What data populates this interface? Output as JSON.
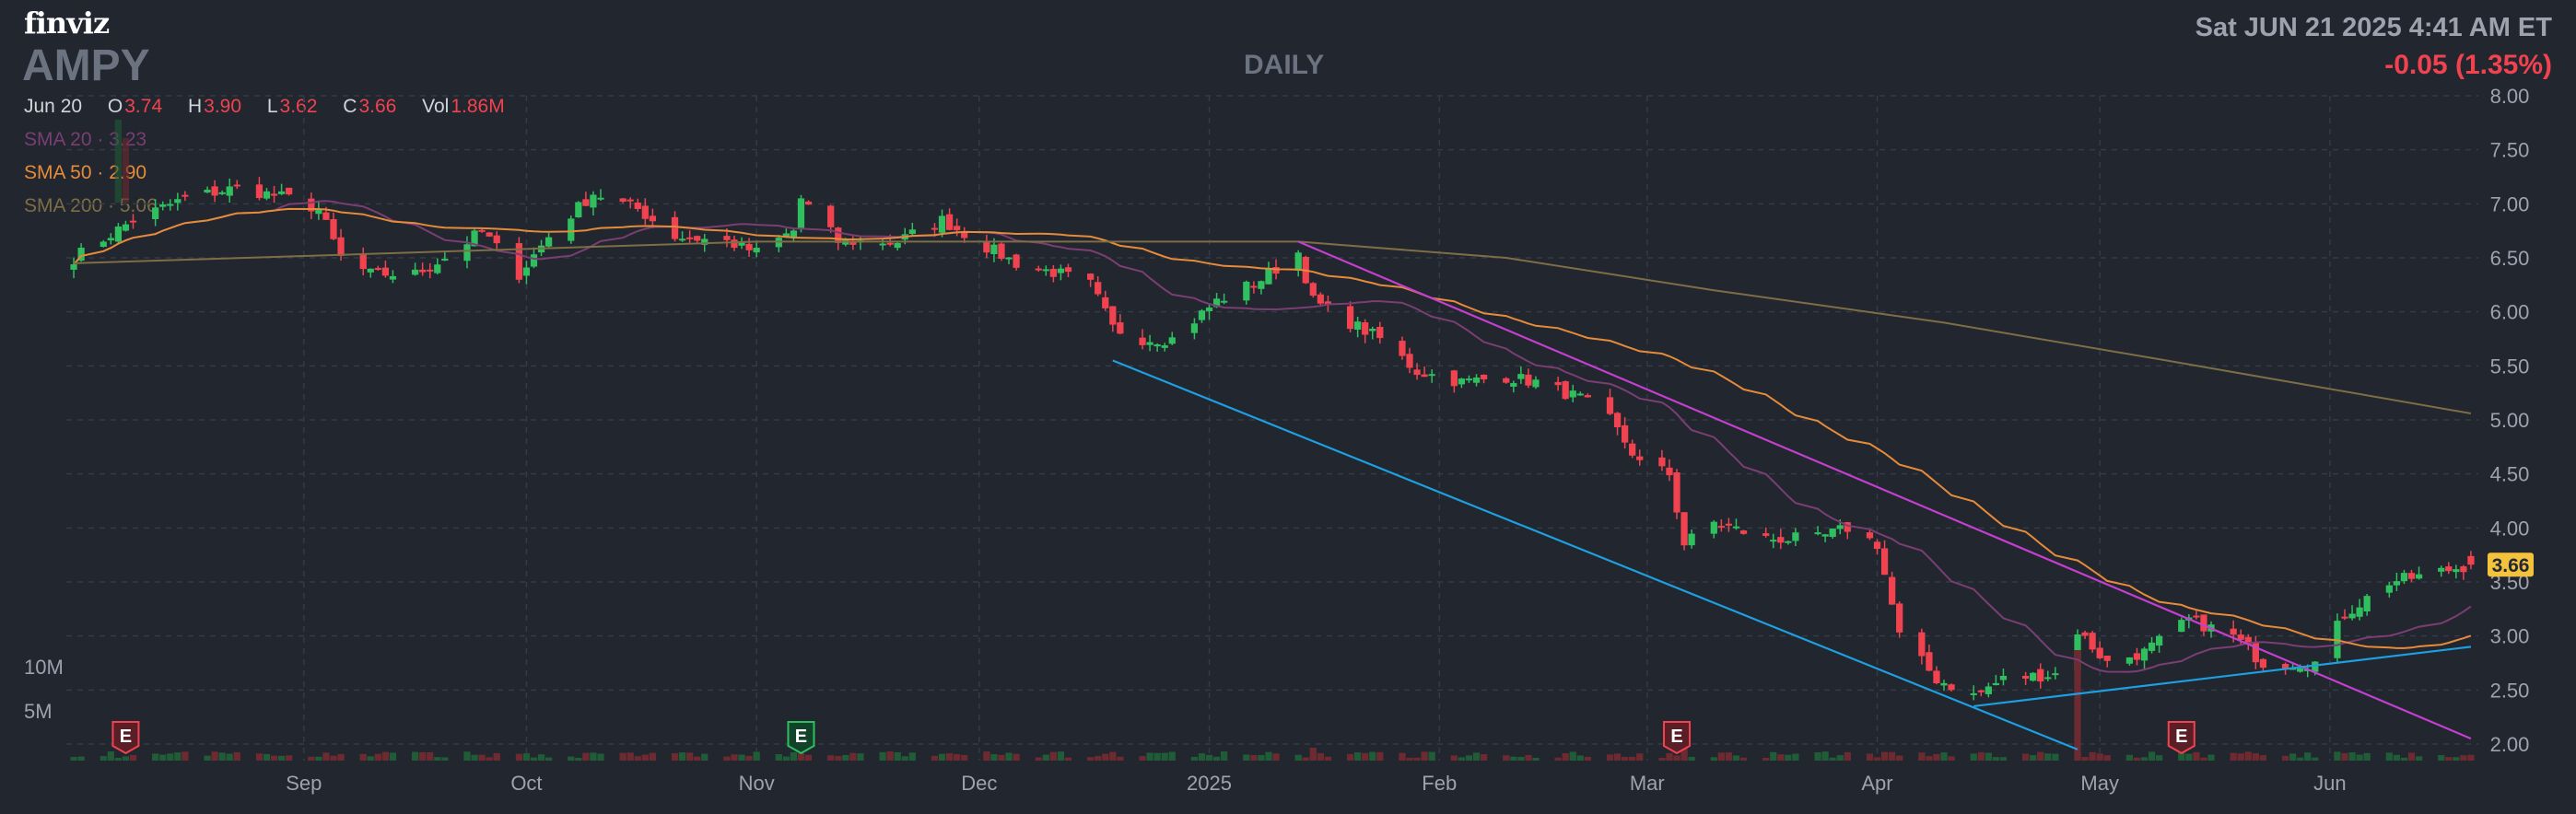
{
  "header": {
    "brand": "finviz",
    "ticker": "AMPY",
    "timeframe": "DAILY",
    "datetime": "Sat JUN 21 2025 4:41 AM ET",
    "change": "-0.05 (1.35%)",
    "ohlc": {
      "date": "Jun 20",
      "open_label": "O",
      "open": "3.74",
      "high_label": "H",
      "high": "3.90",
      "low_label": "L",
      "low": "3.62",
      "close_label": "C",
      "close": "3.66",
      "vol_label": "Vol",
      "vol": "1.86M"
    }
  },
  "legend": [
    {
      "label": "SMA 20 · 3.23",
      "color": "#7a3e73"
    },
    {
      "label": "SMA 50 · 2.90",
      "color": "#e58b3a"
    },
    {
      "label": "SMA 200 · 5.06",
      "color": "#7d6e45"
    }
  ],
  "colors": {
    "up": "#2fbf5f",
    "down": "#f0434f",
    "grid": "#343a46",
    "background": "#22262f",
    "trend_magenta": "#c43fcf",
    "trend_cyan": "#1e9fe0",
    "price_tag": "#f5c23c"
  },
  "chart_data": {
    "type": "candlestick",
    "yticks": [
      "8.00",
      "7.50",
      "7.00",
      "6.50",
      "6.00",
      "5.50",
      "5.00",
      "4.50",
      "4.00",
      "3.50",
      "3.00",
      "2.50",
      "2.00"
    ],
    "ylim": [
      2.0,
      8.0
    ],
    "xticks": [
      "Sep",
      "Oct",
      "Nov",
      "Dec",
      "2025",
      "Feb",
      "Mar",
      "Apr",
      "May",
      "Jun"
    ],
    "volume_ticks": [
      "10M",
      "5M"
    ],
    "last_price": "3.66",
    "earnings_markers": [
      {
        "date": "2024-08-08",
        "label": "E",
        "result": "miss"
      },
      {
        "date": "2024-11-07",
        "label": "E",
        "result": "beat"
      },
      {
        "date": "2025-03-05",
        "label": "E",
        "result": "miss"
      },
      {
        "date": "2025-05-12",
        "label": "E",
        "result": "miss"
      }
    ],
    "anchors": [
      [
        "2024-08-01",
        6.5
      ],
      [
        "2024-08-09",
        6.85
      ],
      [
        "2024-08-16",
        7.05
      ],
      [
        "2024-08-23",
        7.15
      ],
      [
        "2024-08-30",
        7.05
      ],
      [
        "2024-09-03",
        6.95
      ],
      [
        "2024-09-06",
        6.5
      ],
      [
        "2024-09-10",
        6.35
      ],
      [
        "2024-09-16",
        6.35
      ],
      [
        "2024-09-20",
        6.5
      ],
      [
        "2024-09-25",
        6.75
      ],
      [
        "2024-09-30",
        6.35
      ],
      [
        "2024-10-04",
        6.7
      ],
      [
        "2024-10-10",
        7.1
      ],
      [
        "2024-10-16",
        6.95
      ],
      [
        "2024-10-21",
        6.7
      ],
      [
        "2024-10-28",
        6.65
      ],
      [
        "2024-11-01",
        6.55
      ],
      [
        "2024-11-06",
        6.75
      ],
      [
        "2024-11-07",
        7.05
      ],
      [
        "2024-11-12",
        6.65
      ],
      [
        "2024-11-20",
        6.65
      ],
      [
        "2024-11-26",
        6.85
      ],
      [
        "2024-12-02",
        6.6
      ],
      [
        "2024-12-06",
        6.45
      ],
      [
        "2024-12-12",
        6.35
      ],
      [
        "2024-12-16",
        6.25
      ],
      [
        "2024-12-19",
        5.85
      ],
      [
        "2024-12-23",
        5.75
      ],
      [
        "2024-12-27",
        5.75
      ],
      [
        "2025-01-02",
        6.1
      ],
      [
        "2025-01-08",
        6.3
      ],
      [
        "2025-01-13",
        6.55
      ],
      [
        "2025-01-15",
        6.1
      ],
      [
        "2025-01-20",
        5.9
      ],
      [
        "2025-01-24",
        5.75
      ],
      [
        "2025-01-29",
        5.45
      ],
      [
        "2025-02-04",
        5.35
      ],
      [
        "2025-02-10",
        5.4
      ],
      [
        "2025-02-14",
        5.35
      ],
      [
        "2025-02-20",
        5.2
      ],
      [
        "2025-02-24",
        5.0
      ],
      [
        "2025-02-28",
        4.6
      ],
      [
        "2025-03-04",
        4.5
      ],
      [
        "2025-03-06",
        3.85
      ],
      [
        "2025-03-10",
        4.05
      ],
      [
        "2025-03-17",
        3.9
      ],
      [
        "2025-03-24",
        3.9
      ],
      [
        "2025-03-28",
        4.0
      ],
      [
        "2025-04-01",
        3.85
      ],
      [
        "2025-04-04",
        3.0
      ],
      [
        "2025-04-09",
        2.6
      ],
      [
        "2025-04-14",
        2.45
      ],
      [
        "2025-04-18",
        2.6
      ],
      [
        "2025-04-25",
        2.65
      ],
      [
        "2025-04-28",
        3.05
      ],
      [
        "2025-05-02",
        2.75
      ],
      [
        "2025-05-07",
        2.85
      ],
      [
        "2025-05-13",
        3.15
      ],
      [
        "2025-05-19",
        3.0
      ],
      [
        "2025-05-23",
        2.75
      ],
      [
        "2025-05-30",
        2.75
      ],
      [
        "2025-06-03",
        3.2
      ],
      [
        "2025-06-09",
        3.5
      ],
      [
        "2025-06-13",
        3.55
      ],
      [
        "2025-06-20",
        3.66
      ]
    ],
    "trendlines": [
      {
        "name": "resistance",
        "color": "#c43fcf",
        "from": [
          "2025-01-13",
          6.65
        ],
        "to": [
          "2025-06-20",
          2.05
        ]
      },
      {
        "name": "falling-channel",
        "color": "#1e9fe0",
        "from": [
          "2024-12-19",
          5.55
        ],
        "to": [
          "2025-04-28",
          1.95
        ]
      },
      {
        "name": "support",
        "color": "#1e9fe0",
        "from": [
          "2025-04-14",
          2.35
        ],
        "to": [
          "2025-06-20",
          2.9
        ]
      }
    ],
    "sma": [
      {
        "name": "SMA 20",
        "color": "#7a3e73",
        "period": 20
      },
      {
        "name": "SMA 50",
        "color": "#e58b3a",
        "period": 50
      },
      {
        "name": "SMA 200",
        "color": "#7d6e45",
        "points": [
          [
            "2024-08-01",
            6.45
          ],
          [
            "2024-11-01",
            6.65
          ],
          [
            "2025-01-13",
            6.65
          ],
          [
            "2025-02-10",
            6.5
          ],
          [
            "2025-03-10",
            6.2
          ],
          [
            "2025-04-10",
            5.9
          ],
          [
            "2025-05-10",
            5.55
          ],
          [
            "2025-06-20",
            5.06
          ]
        ]
      }
    ]
  }
}
